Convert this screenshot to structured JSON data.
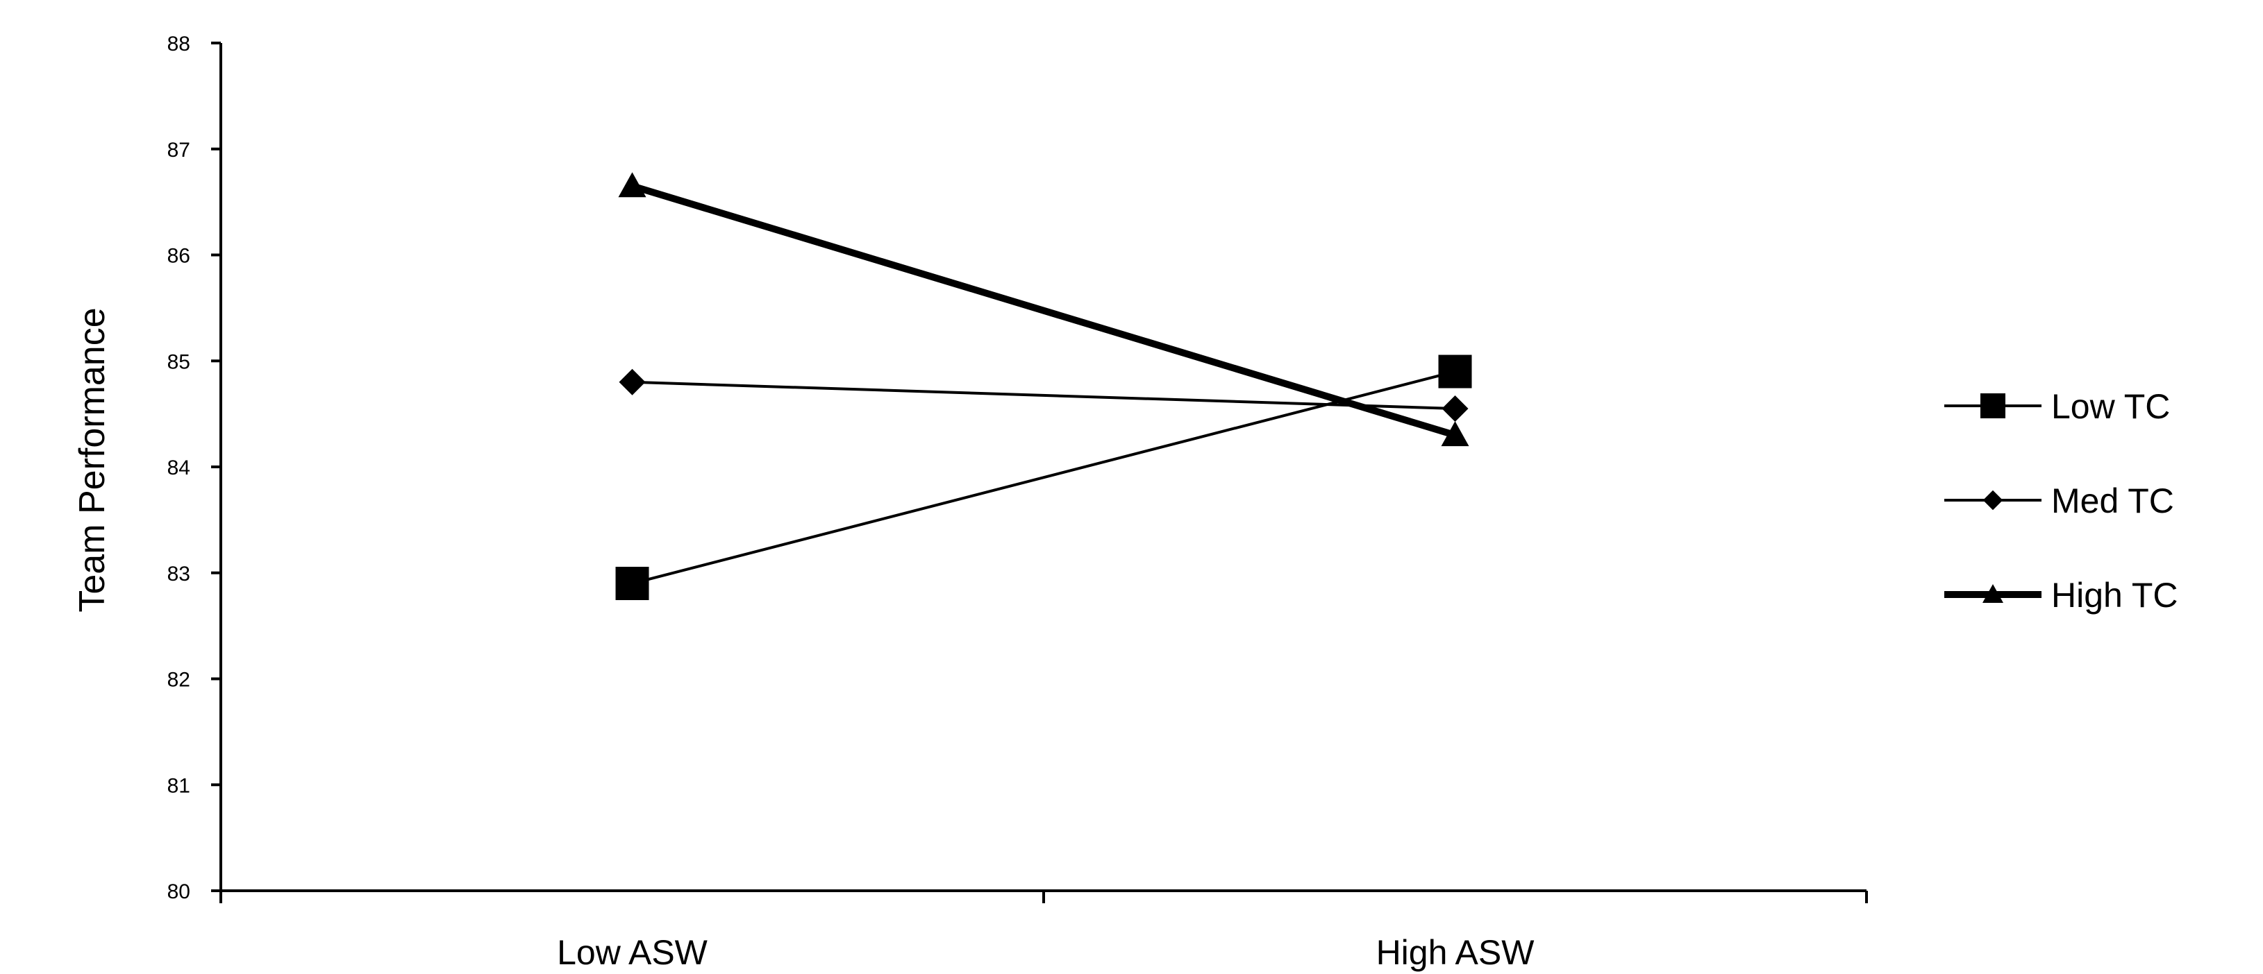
{
  "chart_data": {
    "type": "line",
    "title": "",
    "xlabel": "",
    "ylabel": "Team Performance",
    "categories": [
      "Low ASW",
      "High ASW"
    ],
    "ylim": [
      80,
      88
    ],
    "yticks": [
      "80",
      "81",
      "82",
      "83",
      "84",
      "85",
      "86",
      "87",
      "88"
    ],
    "grid": false,
    "legend_position": "right",
    "series": [
      {
        "name": "Low TC",
        "values": [
          82.9,
          84.9
        ],
        "marker": "square",
        "stroke": "#000000",
        "weight": "thin"
      },
      {
        "name": "Med TC",
        "values": [
          84.8,
          84.55
        ],
        "marker": "diamond",
        "stroke": "#000000",
        "weight": "thin"
      },
      {
        "name": "High TC",
        "values": [
          86.65,
          84.3
        ],
        "marker": "triangle",
        "stroke": "#000000",
        "weight": "thick"
      }
    ]
  }
}
